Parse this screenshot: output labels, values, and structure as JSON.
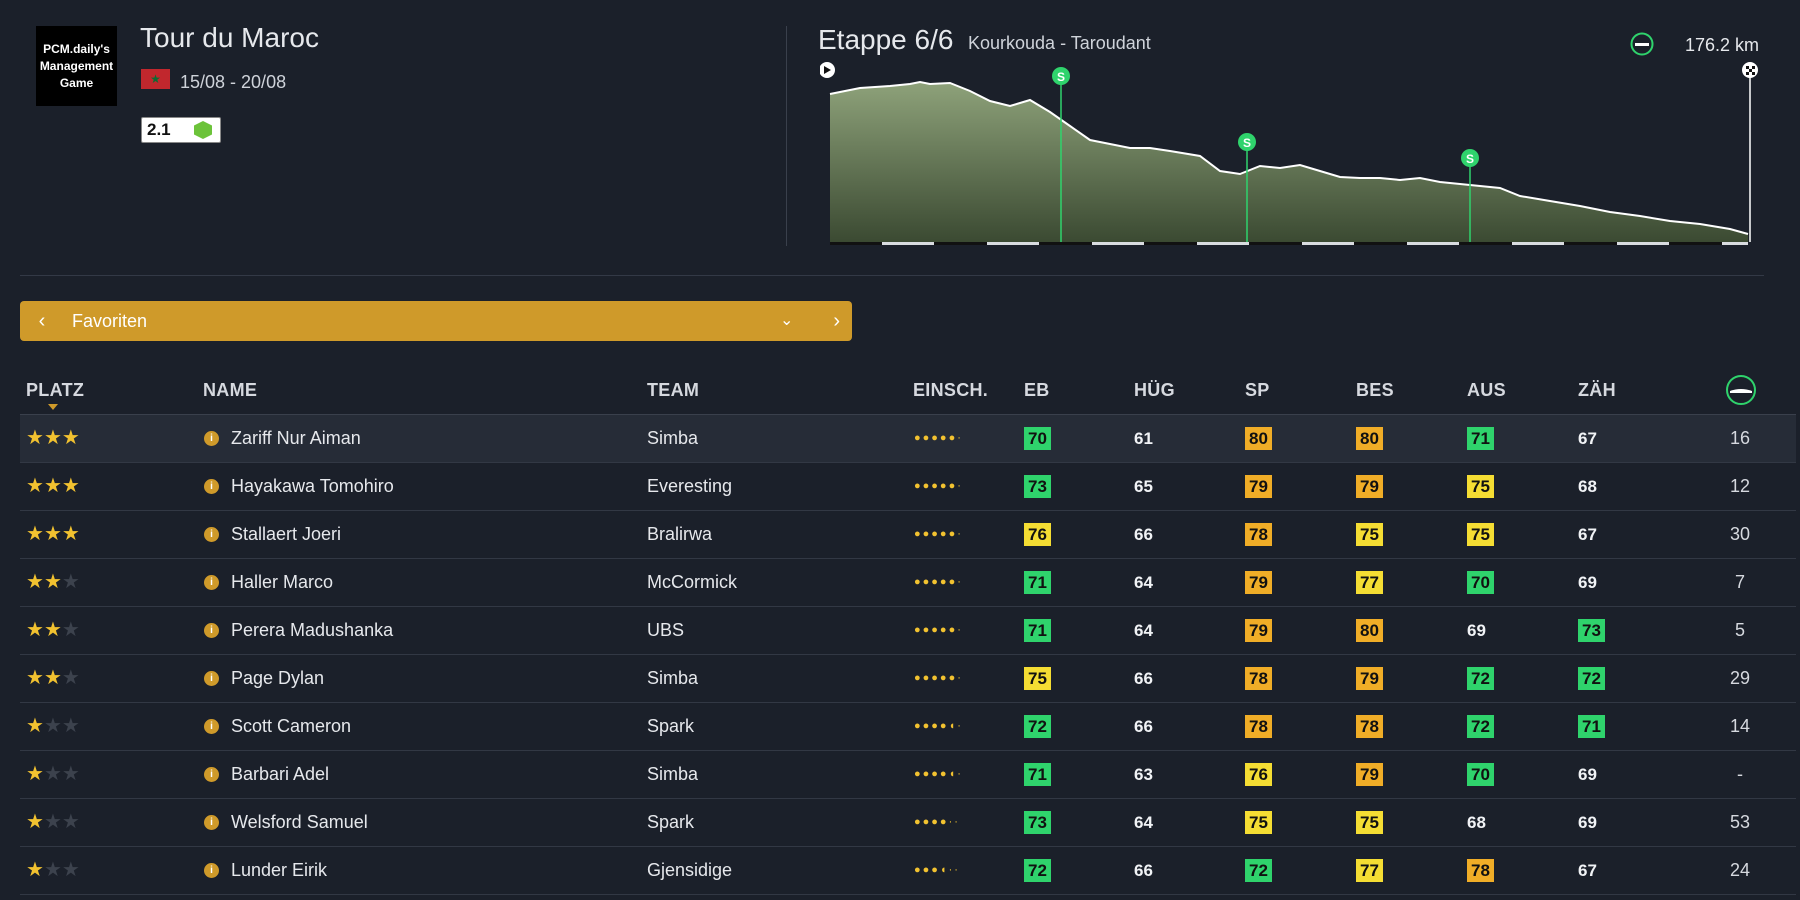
{
  "race": {
    "logo_lines": [
      "PCM.daily's",
      "Management",
      "Game"
    ],
    "title": "Tour du Maroc",
    "dates": "15/08 - 20/08",
    "class": "2.1"
  },
  "stage": {
    "title": "Etappe 6/6",
    "route": "Kourkouda - Taroudant",
    "distance": "176.2 km",
    "sprint_label": "S"
  },
  "selector": {
    "label": "Favoriten"
  },
  "columns": {
    "platz": "PLATZ",
    "name": "NAME",
    "team": "TEAM",
    "einsch": "EINSCH.",
    "eb": "EB",
    "hug": "HÜG",
    "sp": "SP",
    "bes": "BES",
    "aus": "AUS",
    "zah": "ZÄH"
  },
  "colors": {
    "accent": "#cf9a2a",
    "good": "#2fd36c",
    "mid": "#f5dd33",
    "high": "#f0ad27"
  },
  "riders": [
    {
      "stars": 3,
      "name": "Zariff Nur Aiman",
      "team": "Simba",
      "form": 5,
      "eb": {
        "v": "70",
        "c": "g"
      },
      "hug": {
        "v": "61",
        "c": ""
      },
      "sp": {
        "v": "80",
        "c": "o"
      },
      "bes": {
        "v": "80",
        "c": "o"
      },
      "aus": {
        "v": "71",
        "c": "g"
      },
      "zah": {
        "v": "67",
        "c": ""
      },
      "rank": "16"
    },
    {
      "stars": 3,
      "name": "Hayakawa Tomohiro",
      "team": "Everesting",
      "form": 5,
      "eb": {
        "v": "73",
        "c": "g"
      },
      "hug": {
        "v": "65",
        "c": ""
      },
      "sp": {
        "v": "79",
        "c": "o"
      },
      "bes": {
        "v": "79",
        "c": "o"
      },
      "aus": {
        "v": "75",
        "c": "y"
      },
      "zah": {
        "v": "68",
        "c": ""
      },
      "rank": "12"
    },
    {
      "stars": 3,
      "name": "Stallaert Joeri",
      "team": "Bralirwa",
      "form": 5,
      "eb": {
        "v": "76",
        "c": "y"
      },
      "hug": {
        "v": "66",
        "c": ""
      },
      "sp": {
        "v": "78",
        "c": "o"
      },
      "bes": {
        "v": "75",
        "c": "y"
      },
      "aus": {
        "v": "75",
        "c": "y"
      },
      "zah": {
        "v": "67",
        "c": ""
      },
      "rank": "30"
    },
    {
      "stars": 2,
      "name": "Haller Marco",
      "team": "McCormick",
      "form": 5,
      "eb": {
        "v": "71",
        "c": "g"
      },
      "hug": {
        "v": "64",
        "c": ""
      },
      "sp": {
        "v": "79",
        "c": "o"
      },
      "bes": {
        "v": "77",
        "c": "y"
      },
      "aus": {
        "v": "70",
        "c": "g"
      },
      "zah": {
        "v": "69",
        "c": ""
      },
      "rank": "7"
    },
    {
      "stars": 2,
      "name": "Perera Madushanka",
      "team": "UBS",
      "form": 5,
      "eb": {
        "v": "71",
        "c": "g"
      },
      "hug": {
        "v": "64",
        "c": ""
      },
      "sp": {
        "v": "79",
        "c": "o"
      },
      "bes": {
        "v": "80",
        "c": "o"
      },
      "aus": {
        "v": "69",
        "c": ""
      },
      "zah": {
        "v": "73",
        "c": "g"
      },
      "rank": "5"
    },
    {
      "stars": 2,
      "name": "Page Dylan",
      "team": "Simba",
      "form": 5,
      "eb": {
        "v": "75",
        "c": "y"
      },
      "hug": {
        "v": "66",
        "c": ""
      },
      "sp": {
        "v": "78",
        "c": "o"
      },
      "bes": {
        "v": "79",
        "c": "o"
      },
      "aus": {
        "v": "72",
        "c": "g"
      },
      "zah": {
        "v": "72",
        "c": "g"
      },
      "rank": "29"
    },
    {
      "stars": 1,
      "name": "Scott Cameron",
      "team": "Spark",
      "form": 4.5,
      "eb": {
        "v": "72",
        "c": "g"
      },
      "hug": {
        "v": "66",
        "c": ""
      },
      "sp": {
        "v": "78",
        "c": "o"
      },
      "bes": {
        "v": "78",
        "c": "o"
      },
      "aus": {
        "v": "72",
        "c": "g"
      },
      "zah": {
        "v": "71",
        "c": "g"
      },
      "rank": "14"
    },
    {
      "stars": 1,
      "name": "Barbari Adel",
      "team": "Simba",
      "form": 4.5,
      "eb": {
        "v": "71",
        "c": "g"
      },
      "hug": {
        "v": "63",
        "c": ""
      },
      "sp": {
        "v": "76",
        "c": "y"
      },
      "bes": {
        "v": "79",
        "c": "o"
      },
      "aus": {
        "v": "70",
        "c": "g"
      },
      "zah": {
        "v": "69",
        "c": ""
      },
      "rank": "-"
    },
    {
      "stars": 1,
      "name": "Welsford Samuel",
      "team": "Spark",
      "form": 4,
      "eb": {
        "v": "73",
        "c": "g"
      },
      "hug": {
        "v": "64",
        "c": ""
      },
      "sp": {
        "v": "75",
        "c": "y"
      },
      "bes": {
        "v": "75",
        "c": "y"
      },
      "aus": {
        "v": "68",
        "c": ""
      },
      "zah": {
        "v": "69",
        "c": ""
      },
      "rank": "53"
    },
    {
      "stars": 1,
      "name": "Lunder Eirik",
      "team": "Gjensidige",
      "form": 3.5,
      "eb": {
        "v": "72",
        "c": "g"
      },
      "hug": {
        "v": "66",
        "c": ""
      },
      "sp": {
        "v": "72",
        "c": "g"
      },
      "bes": {
        "v": "77",
        "c": "y"
      },
      "aus": {
        "v": "78",
        "c": "o"
      },
      "zah": {
        "v": "67",
        "c": ""
      },
      "rank": "24"
    }
  ]
}
